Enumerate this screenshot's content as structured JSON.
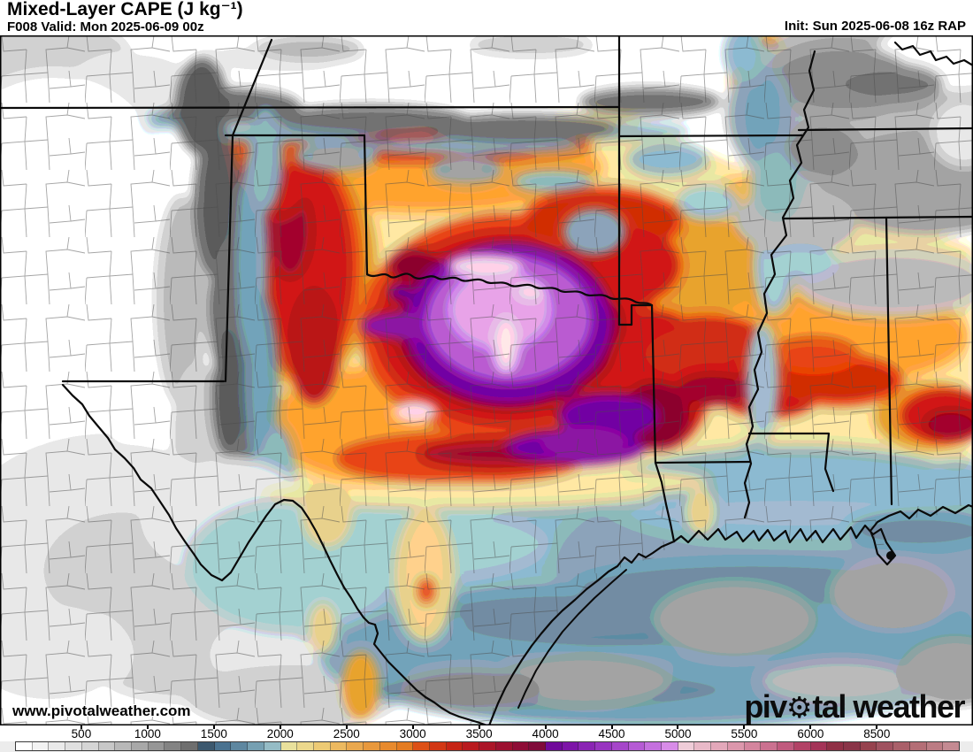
{
  "header": {
    "title": "Mixed-Layer CAPE (J kg⁻¹)",
    "valid_label": "F008 Valid: Mon 2025-06-09 00z",
    "init_label": "Init: Sun 2025-06-08 16z RAP"
  },
  "map": {
    "watermark": "www.pivotalweather.com",
    "logo": {
      "pre": "piv",
      "gear_icon": "⚙",
      "post": "tal weather"
    }
  },
  "chart_data": {
    "type": "heatmap",
    "title": "Mixed-Layer CAPE (J kg⁻¹)",
    "units": "J kg⁻¹",
    "model_run": "Init: Sun 2025-06-08 16z RAP",
    "forecast_valid": "F008 Valid: Mon 2025-06-09 00z",
    "colorbar": {
      "tick_labels": [
        "500",
        "1000",
        "1500",
        "2000",
        "2500",
        "3000",
        "3500",
        "4000",
        "4500",
        "5000",
        "5500",
        "6000",
        "8500"
      ],
      "label_positions_cells": [
        4,
        8,
        12,
        16,
        20,
        24,
        28,
        32,
        36,
        40,
        44,
        48,
        52
      ],
      "cell_colors": [
        "#ffffff",
        "#f3f3f3",
        "#eaeaea",
        "#e0e0e0",
        "#d5d5d5",
        "#c7c7c7",
        "#b8b8b8",
        "#a8a8a8",
        "#969696",
        "#838383",
        "#6e6e6e",
        "#3c586e",
        "#4a7290",
        "#5e87a0",
        "#76a0b2",
        "#95bcc6",
        "#e9e19c",
        "#ecd88c",
        "#edca74",
        "#ecb960",
        "#eaa84e",
        "#e8983c",
        "#e78a2e",
        "#e47c22",
        "#dd5016",
        "#d23714",
        "#c62415",
        "#b91a1e",
        "#ab1528",
        "#9c1030",
        "#8e0c36",
        "#800a3a",
        "#70099a",
        "#7d14a8",
        "#8a24b4",
        "#9834c0",
        "#a646ca",
        "#b55ad4",
        "#c470de",
        "#d88ce8",
        "#efccd8",
        "#e9b9c8",
        "#e3a8ba",
        "#dc97ac",
        "#d4859e",
        "#cb7190",
        "#c05a7e",
        "#b24266",
        "#a43458",
        "#903046",
        "#8a3448",
        "#96424e",
        "#a05260",
        "#aa606a",
        "#b46e76",
        "#bc7c84",
        "#c48a92"
      ]
    }
  }
}
